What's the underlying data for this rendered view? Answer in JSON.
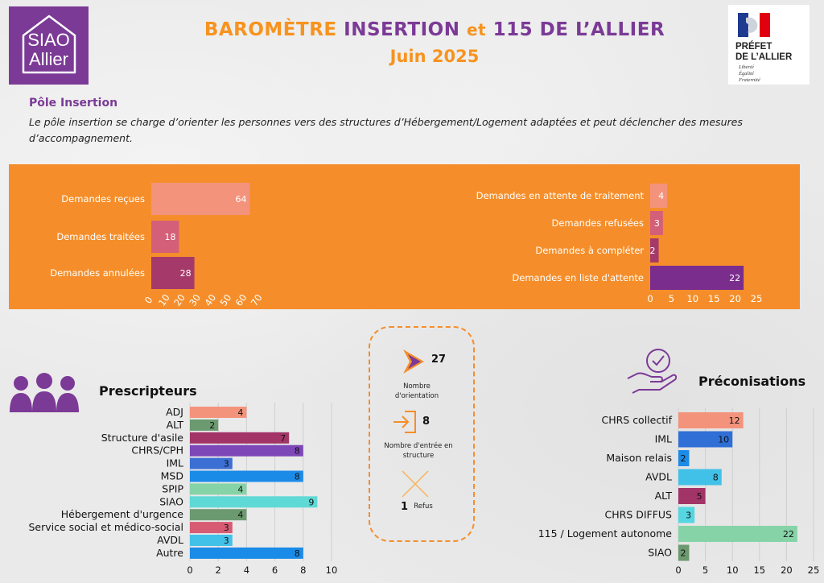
{
  "header": {
    "logo_line1": "SIAO",
    "logo_line2": "Allier",
    "title_part1": "BAROMÈTRE",
    "title_part2": "INSERTION",
    "title_part3": "et",
    "title_part4": "115 DE L’ALLIER",
    "subtitle": "Juin 2025",
    "prefet_line1": "PRÉFET",
    "prefet_line2": "DE L’ALLIER",
    "motto": [
      "Liberté",
      "Égalité",
      "Fraternité"
    ]
  },
  "pole": {
    "title": "Pôle Insertion",
    "description": "Le pôle insertion se charge d’orienter les personnes vers des structures d’Hébergement/Logement adaptées et peut déclencher des mesures d’accompagnement."
  },
  "stats": {
    "orientations": "27",
    "orientations_label": "Nombre d'orientation",
    "entries": "8",
    "entries_label": "Nombre d'entrée en structure",
    "refusals": "1",
    "refusals_label": "Refus"
  },
  "sections": {
    "prescripteurs": "Prescripteurs",
    "preconisations": "Préconisations"
  },
  "chart_data": [
    {
      "id": "demandes",
      "type": "bar",
      "orientation": "horizontal",
      "categories": [
        "Demandes reçues",
        "Demandes traitées",
        "Demandes annulées"
      ],
      "values": [
        64,
        18,
        28
      ],
      "colors": [
        "#f4937c",
        "#d45f78",
        "#a53a6a"
      ],
      "xlim": [
        0,
        70
      ],
      "ticks": [
        0,
        10,
        20,
        30,
        40,
        50,
        60,
        70
      ]
    },
    {
      "id": "attente",
      "type": "bar",
      "orientation": "horizontal",
      "categories": [
        "Demandes en attente de traitement",
        "Demandes refusées",
        "Demandes à compléter",
        "Demandes en liste d'attente"
      ],
      "values": [
        4,
        3,
        2,
        22
      ],
      "colors": [
        "#f4937c",
        "#d45f78",
        "#a53a6a",
        "#7b2d8e"
      ],
      "xlim": [
        0,
        25
      ],
      "ticks": [
        0,
        5,
        10,
        15,
        20,
        25
      ]
    },
    {
      "id": "prescripteurs",
      "type": "bar",
      "orientation": "horizontal",
      "title": "Prescripteurs",
      "categories": [
        "ADJ",
        "ALT",
        "Structure d'asile",
        "CHRS/CPH",
        "IML",
        "MSD",
        "SPIP",
        "SIAO",
        "Hébergement d'urgence",
        "Service social et médico-social",
        "AVDL",
        "Autre"
      ],
      "values": [
        4,
        2,
        7,
        8,
        3,
        8,
        4,
        9,
        4,
        3,
        3,
        8
      ],
      "colors": [
        "#f4937c",
        "#6c9a70",
        "#a33467",
        "#7d47b8",
        "#3b6fd3",
        "#1b8be8",
        "#87d3a8",
        "#5fd9d6",
        "#6c9a70",
        "#d65b73",
        "#42c1e8",
        "#1b8be8"
      ],
      "xlim": [
        0,
        10
      ],
      "ticks": [
        0,
        2,
        4,
        6,
        8,
        10
      ]
    },
    {
      "id": "preconisations",
      "type": "bar",
      "orientation": "horizontal",
      "title": "Préconisations",
      "categories": [
        "CHRS collectif",
        "IML",
        "Maison relais",
        "AVDL",
        "ALT",
        "CHRS DIFFUS",
        "115 / Logement autonome",
        "SIAO"
      ],
      "values": [
        12,
        10,
        2,
        8,
        5,
        3,
        22,
        2
      ],
      "colors": [
        "#f4937c",
        "#2f6fd6",
        "#1b8be8",
        "#42c1e8",
        "#a33467",
        "#55d6e0",
        "#87d3a8",
        "#6c9a70"
      ],
      "xlim": [
        0,
        25
      ],
      "ticks": [
        0,
        5,
        10,
        15,
        20,
        25
      ]
    }
  ]
}
